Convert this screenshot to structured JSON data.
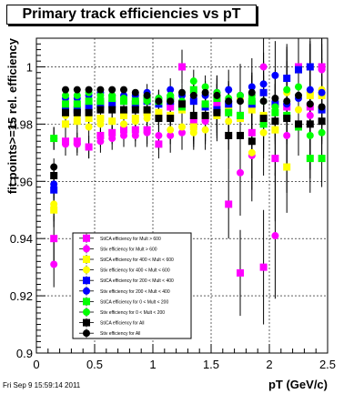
{
  "title": "Primary track efficiencies vs pT",
  "footer": "Fri Sep  9 15:59:14 2011",
  "chart_data": {
    "type": "scatter",
    "xlabel": "pT (GeV/c)",
    "ylabel": "fit points>=15 rel. efficiency",
    "xlim": [
      0,
      2.5
    ],
    "ylim": [
      0.9,
      1.01
    ],
    "xticks": [
      0,
      0.5,
      1,
      1.5,
      2,
      2.5
    ],
    "xtick_labels": [
      "0",
      "0.5",
      "1",
      "1.5",
      "2",
      "2.5"
    ],
    "yticks": [
      0.9,
      0.92,
      0.94,
      0.96,
      0.98,
      1.0
    ],
    "ytick_labels": [
      "0.9",
      "0.92",
      "0.94",
      "0.96",
      "0.98",
      "1"
    ],
    "grid": true,
    "legend_position": "bottom-left",
    "x": [
      0.15,
      0.25,
      0.35,
      0.45,
      0.55,
      0.65,
      0.75,
      0.85,
      0.95,
      1.05,
      1.15,
      1.25,
      1.35,
      1.45,
      1.55,
      1.65,
      1.75,
      1.85,
      1.95,
      2.05,
      2.15,
      2.25,
      2.35,
      2.45
    ],
    "series": [
      {
        "name": "StiCA efficiency  for Mult > 600",
        "color": "#ff00ff",
        "marker": "square",
        "values": [
          0.94,
          0.974,
          0.974,
          0.972,
          0.976,
          0.977,
          0.978,
          0.978,
          0.978,
          0.973,
          0.986,
          1.0,
          0.981,
          0.982,
          0.987,
          0.952,
          0.928,
          0.977,
          0.93,
          0.968,
          0.986,
          1.0,
          0.986,
          1.0
        ],
        "err": [
          0.008,
          0.004,
          0.004,
          0.004,
          0.004,
          0.004,
          0.004,
          0.004,
          0.005,
          0.005,
          0.006,
          0.006,
          0.007,
          0.008,
          0.01,
          0.012,
          0.015,
          0.016,
          0.02,
          0.022,
          0.02,
          0.02,
          0.022,
          0.02
        ]
      },
      {
        "name": "Stiv efficiency  for Mult > 600",
        "color": "#ff00ff",
        "marker": "circle",
        "values": [
          0.931,
          0.973,
          0.973,
          0.972,
          0.974,
          0.975,
          0.976,
          0.976,
          0.977,
          0.976,
          0.976,
          0.977,
          0.979,
          0.981,
          0.984,
          0.976,
          0.963,
          0.969,
          1.0,
          0.941,
          0.976,
          0.999,
          0.983,
          0.999
        ],
        "err": [
          0.008,
          0.004,
          0.004,
          0.004,
          0.004,
          0.004,
          0.004,
          0.004,
          0.005,
          0.005,
          0.006,
          0.006,
          0.007,
          0.008,
          0.01,
          0.012,
          0.015,
          0.016,
          0.02,
          0.022,
          0.02,
          0.02,
          0.022,
          0.02
        ]
      },
      {
        "name": "StiCA efficiency  for 400 < Mult < 600",
        "color": "#ffff00",
        "marker": "square",
        "values": [
          0.95,
          0.98,
          0.981,
          0.982,
          0.982,
          0.981,
          0.983,
          0.982,
          0.984,
          0.984,
          0.983,
          0.985,
          0.979,
          0.983,
          0.983,
          0.985,
          0.982,
          0.985,
          0.983,
          0.978,
          0.965,
          0.999,
          0.99,
          0.99
        ],
        "err": [
          0.006,
          0.003,
          0.003,
          0.003,
          0.003,
          0.003,
          0.003,
          0.003,
          0.004,
          0.004,
          0.005,
          0.005,
          0.006,
          0.007,
          0.008,
          0.01,
          0.012,
          0.013,
          0.015,
          0.016,
          0.016,
          0.016,
          0.018,
          0.016
        ]
      },
      {
        "name": "Stiv efficiency  for 400 < Mult < 600",
        "color": "#ffff00",
        "marker": "circle",
        "values": [
          0.952,
          0.983,
          0.983,
          0.979,
          0.98,
          0.981,
          0.98,
          0.981,
          0.982,
          0.982,
          0.978,
          0.979,
          0.977,
          0.978,
          0.984,
          0.981,
          0.989,
          0.97,
          0.977,
          0.978,
          0.991,
          0.985,
          0.991,
          0.992
        ],
        "err": [
          0.006,
          0.003,
          0.003,
          0.003,
          0.003,
          0.003,
          0.003,
          0.003,
          0.004,
          0.004,
          0.005,
          0.005,
          0.006,
          0.007,
          0.008,
          0.01,
          0.012,
          0.013,
          0.015,
          0.016,
          0.016,
          0.016,
          0.018,
          0.016
        ]
      },
      {
        "name": "StiCA efficiency  for 200 < Mult < 400",
        "color": "#0000ff",
        "marker": "square",
        "values": [
          0.957,
          0.985,
          0.985,
          0.986,
          0.987,
          0.987,
          0.988,
          0.987,
          0.988,
          0.987,
          0.988,
          0.986,
          0.988,
          0.986,
          0.985,
          0.987,
          0.983,
          0.987,
          0.991,
          0.987,
          0.996,
          0.999,
          1.0,
          0.985
        ],
        "err": [
          0.005,
          0.002,
          0.002,
          0.002,
          0.002,
          0.002,
          0.002,
          0.002,
          0.003,
          0.003,
          0.004,
          0.004,
          0.004,
          0.005,
          0.006,
          0.007,
          0.008,
          0.01,
          0.011,
          0.012,
          0.012,
          0.012,
          0.014,
          0.012
        ]
      },
      {
        "name": "Stiv efficiency  for 200 < Mult < 400",
        "color": "#0000ff",
        "marker": "circle",
        "values": [
          0.959,
          0.989,
          0.989,
          0.99,
          0.991,
          0.99,
          0.99,
          0.99,
          0.991,
          0.989,
          0.992,
          0.99,
          0.99,
          0.99,
          0.991,
          0.992,
          0.99,
          0.993,
          0.994,
          0.997,
          0.987,
          0.989,
          0.992,
          0.991
        ],
        "err": [
          0.005,
          0.002,
          0.002,
          0.002,
          0.002,
          0.002,
          0.002,
          0.002,
          0.003,
          0.003,
          0.004,
          0.004,
          0.004,
          0.005,
          0.006,
          0.007,
          0.008,
          0.01,
          0.011,
          0.012,
          0.012,
          0.012,
          0.014,
          0.012
        ]
      },
      {
        "name": "StiCA efficiency  for 0 < Mult < 200",
        "color": "#00ff00",
        "marker": "square",
        "values": [
          0.975,
          0.987,
          0.987,
          0.988,
          0.988,
          0.989,
          0.988,
          0.988,
          0.989,
          0.988,
          0.989,
          0.986,
          0.992,
          0.987,
          0.989,
          0.984,
          0.983,
          0.988,
          0.98,
          0.984,
          0.983,
          0.979,
          0.968,
          0.968
        ],
        "err": [
          0.004,
          0.002,
          0.002,
          0.002,
          0.002,
          0.002,
          0.002,
          0.002,
          0.002,
          0.003,
          0.003,
          0.003,
          0.004,
          0.004,
          0.005,
          0.006,
          0.007,
          0.008,
          0.009,
          0.01,
          0.01,
          0.01,
          0.012,
          0.01
        ]
      },
      {
        "name": "Stiv efficiency  for 0 < Mult < 200",
        "color": "#00ff00",
        "marker": "circle",
        "values": [
          0.975,
          0.99,
          0.99,
          0.991,
          0.99,
          0.99,
          0.989,
          0.988,
          0.988,
          0.989,
          0.99,
          0.988,
          0.995,
          0.993,
          0.991,
          0.989,
          0.99,
          0.99,
          0.988,
          0.986,
          0.992,
          0.993,
          0.976,
          0.977
        ],
        "err": [
          0.004,
          0.002,
          0.002,
          0.002,
          0.002,
          0.002,
          0.002,
          0.002,
          0.002,
          0.003,
          0.003,
          0.003,
          0.004,
          0.004,
          0.005,
          0.006,
          0.007,
          0.008,
          0.009,
          0.01,
          0.01,
          0.01,
          0.012,
          0.01
        ]
      },
      {
        "name": "StiCA efficiency  for All",
        "color": "#000000",
        "marker": "square",
        "values": [
          0.962,
          0.984,
          0.984,
          0.984,
          0.985,
          0.985,
          0.985,
          0.985,
          0.985,
          0.982,
          0.982,
          0.987,
          0.983,
          0.983,
          0.984,
          0.976,
          0.976,
          0.974,
          0.982,
          0.981,
          0.982,
          0.98,
          0.98,
          0.981
        ],
        "err": [
          0.003,
          0.001,
          0.001,
          0.001,
          0.001,
          0.001,
          0.001,
          0.001,
          0.002,
          0.002,
          0.002,
          0.002,
          0.003,
          0.003,
          0.004,
          0.005,
          0.005,
          0.006,
          0.007,
          0.008,
          0.008,
          0.008,
          0.009,
          0.008
        ]
      },
      {
        "name": "Stiv efficiency  for All",
        "color": "#000000",
        "marker": "circle",
        "values": [
          0.965,
          0.992,
          0.992,
          0.992,
          0.992,
          0.992,
          0.992,
          0.991,
          0.99,
          0.988,
          0.988,
          0.991,
          0.99,
          0.991,
          0.99,
          0.988,
          0.988,
          0.991,
          0.988,
          0.989,
          0.988,
          0.99,
          0.987,
          0.986
        ],
        "err": [
          0.003,
          0.001,
          0.001,
          0.001,
          0.001,
          0.001,
          0.001,
          0.001,
          0.002,
          0.002,
          0.002,
          0.002,
          0.003,
          0.003,
          0.004,
          0.005,
          0.005,
          0.006,
          0.007,
          0.008,
          0.008,
          0.008,
          0.009,
          0.008
        ]
      }
    ]
  }
}
